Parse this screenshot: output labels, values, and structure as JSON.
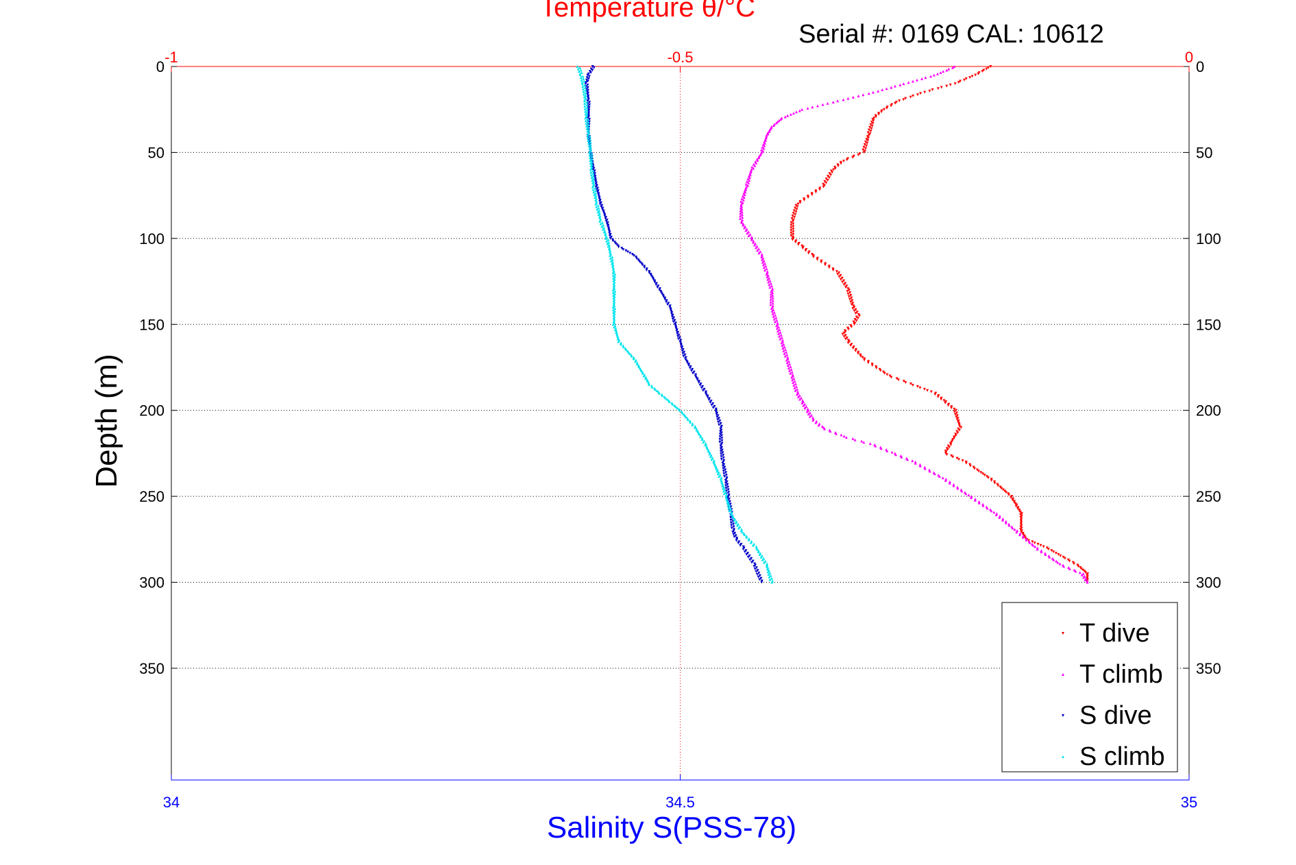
{
  "chart_data": {
    "type": "scatter",
    "title": "Temperature θ/°C",
    "subtitle": "Serial #: 0169 CAL: 10612",
    "xlabel": "Salinity S(PSS-78)",
    "ylabel": "Depth (m)",
    "ylim": [
      0,
      415
    ],
    "yticks": [
      0,
      50,
      100,
      150,
      200,
      250,
      300,
      350
    ],
    "bottom_axis": {
      "min": 34,
      "max": 35,
      "ticks": [
        34,
        34.5,
        35
      ],
      "tick_labels": [
        "34",
        "34.5",
        "35"
      ]
    },
    "top_axis": {
      "min": -1,
      "max": 0,
      "ticks": [
        -1,
        -0.5,
        0
      ],
      "tick_labels": [
        "-1",
        "-0.5",
        "0"
      ]
    },
    "grid": "horizontal dotted at each depth tick, vertical dotted at middle tick",
    "legend": {
      "position": "bottom-right",
      "entries": [
        "T dive",
        "T climb",
        "S dive",
        "S climb"
      ]
    },
    "colors": {
      "temperature_axis": "#ff0000",
      "salinity_axis": "#0000ff",
      "t_dive": "#ff0000",
      "t_climb": "#ff00ff",
      "s_dive": "#0000c8",
      "s_climb": "#00e5ee"
    },
    "series": [
      {
        "name": "T dive",
        "axis": "top",
        "color": "#ff0000",
        "marker": "triangle-down",
        "depth": [
          0,
          5,
          10,
          15,
          20,
          25,
          30,
          40,
          50,
          55,
          60,
          70,
          80,
          90,
          100,
          105,
          110,
          120,
          130,
          140,
          145,
          150,
          155,
          160,
          170,
          180,
          190,
          195,
          200,
          210,
          220,
          225,
          230,
          240,
          250,
          255,
          260,
          270,
          275,
          280,
          290,
          295,
          300
        ],
        "values": [
          -0.195,
          -0.21,
          -0.23,
          -0.26,
          -0.285,
          -0.3,
          -0.31,
          -0.315,
          -0.32,
          -0.34,
          -0.35,
          -0.36,
          -0.385,
          -0.39,
          -0.39,
          -0.38,
          -0.37,
          -0.345,
          -0.335,
          -0.33,
          -0.325,
          -0.33,
          -0.34,
          -0.335,
          -0.32,
          -0.295,
          -0.25,
          -0.24,
          -0.23,
          -0.225,
          -0.235,
          -0.24,
          -0.22,
          -0.195,
          -0.175,
          -0.17,
          -0.165,
          -0.165,
          -0.16,
          -0.14,
          -0.11,
          -0.1,
          -0.1
        ]
      },
      {
        "name": "T climb",
        "axis": "top",
        "color": "#ff00ff",
        "marker": "triangle-up",
        "depth": [
          0,
          5,
          10,
          15,
          20,
          25,
          30,
          35,
          40,
          50,
          60,
          70,
          80,
          90,
          100,
          110,
          120,
          130,
          140,
          150,
          160,
          170,
          180,
          190,
          195,
          200,
          205,
          210,
          215,
          220,
          225,
          230,
          240,
          250,
          260,
          270,
          280,
          290,
          295,
          300
        ],
        "values": [
          -0.23,
          -0.25,
          -0.28,
          -0.31,
          -0.345,
          -0.38,
          -0.4,
          -0.41,
          -0.415,
          -0.42,
          -0.43,
          -0.435,
          -0.44,
          -0.44,
          -0.43,
          -0.42,
          -0.415,
          -0.41,
          -0.41,
          -0.405,
          -0.4,
          -0.395,
          -0.39,
          -0.385,
          -0.38,
          -0.375,
          -0.37,
          -0.36,
          -0.34,
          -0.31,
          -0.29,
          -0.27,
          -0.24,
          -0.215,
          -0.19,
          -0.17,
          -0.15,
          -0.125,
          -0.105,
          -0.1
        ]
      },
      {
        "name": "S dive",
        "axis": "bottom",
        "color": "#0000c8",
        "marker": "triangle-down",
        "depth": [
          0,
          5,
          10,
          20,
          30,
          40,
          50,
          60,
          70,
          80,
          90,
          100,
          105,
          110,
          120,
          130,
          140,
          150,
          160,
          170,
          180,
          190,
          200,
          210,
          220,
          230,
          240,
          250,
          260,
          270,
          275,
          280,
          290,
          300
        ],
        "values": [
          34.415,
          34.41,
          34.408,
          34.41,
          34.41,
          34.41,
          34.412,
          34.415,
          34.418,
          34.422,
          34.428,
          34.432,
          34.44,
          34.455,
          34.47,
          34.48,
          34.49,
          34.495,
          34.5,
          34.505,
          34.515,
          34.525,
          34.535,
          34.54,
          34.54,
          34.542,
          34.545,
          34.547,
          34.55,
          34.552,
          34.555,
          34.562,
          34.573,
          34.58
        ]
      },
      {
        "name": "S climb",
        "axis": "bottom",
        "color": "#00e5ee",
        "marker": "triangle-up",
        "depth": [
          0,
          5,
          10,
          20,
          30,
          40,
          50,
          60,
          70,
          80,
          90,
          100,
          110,
          120,
          130,
          140,
          150,
          160,
          170,
          180,
          185,
          190,
          195,
          200,
          210,
          220,
          230,
          240,
          250,
          260,
          270,
          280,
          290,
          300
        ],
        "values": [
          34.4,
          34.403,
          34.405,
          34.407,
          34.408,
          34.41,
          34.412,
          34.413,
          34.415,
          34.418,
          34.422,
          34.428,
          34.432,
          34.435,
          34.435,
          34.435,
          34.435,
          34.44,
          34.455,
          34.465,
          34.47,
          34.48,
          34.49,
          34.5,
          34.515,
          34.525,
          34.533,
          34.54,
          34.545,
          34.55,
          34.56,
          34.575,
          34.585,
          34.59
        ]
      }
    ]
  }
}
